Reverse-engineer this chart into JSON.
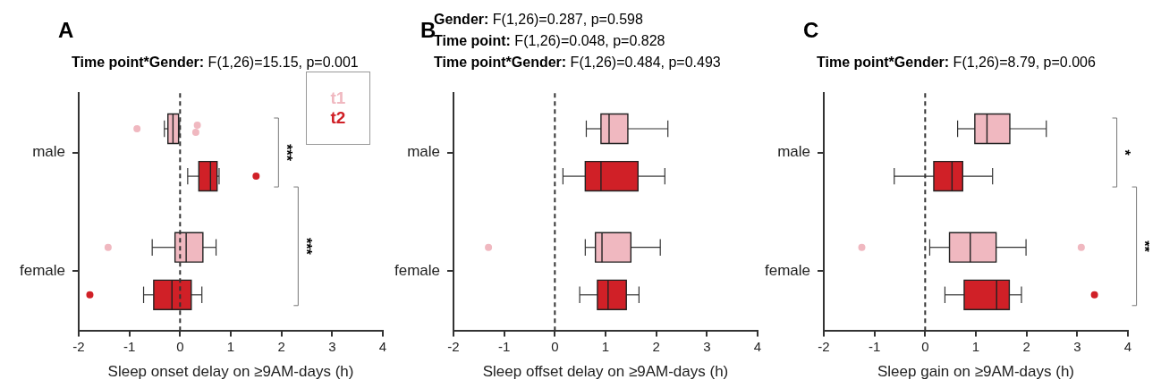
{
  "chart_data": [
    {
      "type": "box",
      "orientation": "horizontal",
      "title": "A",
      "subtitle": "Time point*Gender: F(1,26)=15.15, p=0.001",
      "xlabel": "Sleep onset delay on ≥9AM-days (h)",
      "categories": [
        "male",
        "female"
      ],
      "xlim": [
        -2,
        4
      ],
      "xticks": [
        -2,
        -1,
        0,
        1,
        2,
        3,
        4
      ],
      "grid": false,
      "legend": "top right",
      "series": [
        {
          "name": "t1",
          "color": "#f0b8c0",
          "boxes": [
            {
              "low": -0.31,
              "q1": -0.24,
              "median": -0.14,
              "q3": -0.03,
              "high": -0.01,
              "outliers": [
                -0.85,
                0.31,
                0.34
              ]
            },
            {
              "low": -0.55,
              "q1": -0.1,
              "median": 0.12,
              "q3": 0.45,
              "high": 0.71,
              "outliers": [
                -1.42
              ]
            }
          ]
        },
        {
          "name": "t2",
          "color": "#d02027",
          "boxes": [
            {
              "low": 0.15,
              "q1": 0.37,
              "median": 0.6,
              "q3": 0.73,
              "high": 0.77,
              "outliers": [
                1.5
              ]
            },
            {
              "low": -0.72,
              "q1": -0.52,
              "median": -0.16,
              "q3": 0.22,
              "high": 0.43,
              "outliers": [
                -1.78
              ]
            }
          ]
        }
      ],
      "ref_lines": [
        {
          "axis": "x",
          "value": 0,
          "color": "#333333",
          "line_style": "dashed"
        }
      ],
      "annotations": [
        "***",
        "***"
      ]
    },
    {
      "type": "box",
      "orientation": "horizontal",
      "title": "B",
      "subtitle": "Gender: F(1,26)=0.287, p=0.598\nTime point: F(1,26)=0.048, p=0.828\nTime point*Gender: F(1,26)=0.484, p=0.493",
      "xlabel": "Sleep offset delay on ≥9AM-days (h)",
      "categories": [
        "male",
        "female"
      ],
      "xlim": [
        -2,
        4
      ],
      "xticks": [
        -2,
        -1,
        0,
        1,
        2,
        3,
        4
      ],
      "grid": false,
      "series": [
        {
          "color": "#f0b8c0",
          "boxes": [
            {
              "low": 0.62,
              "q1": 0.91,
              "median": 1.07,
              "q3": 1.44,
              "high": 2.23
            },
            {
              "low": 0.6,
              "q1": 0.8,
              "median": 0.93,
              "q3": 1.5,
              "high": 2.08,
              "outliers": [
                -1.31
              ]
            }
          ]
        },
        {
          "color": "#d02027",
          "boxes": [
            {
              "low": 0.16,
              "q1": 0.6,
              "median": 0.91,
              "q3": 1.64,
              "high": 2.17
            },
            {
              "low": 0.49,
              "q1": 0.84,
              "median": 1.05,
              "q3": 1.41,
              "high": 1.66
            }
          ]
        }
      ],
      "ref_lines": [
        {
          "axis": "x",
          "value": 0,
          "color": "#333333",
          "line_style": "dashed"
        }
      ]
    },
    {
      "type": "box",
      "orientation": "horizontal",
      "title": "C",
      "subtitle": "Time point*Gender: F(1,26)=8.79, p=0.006",
      "xlabel": "Sleep gain on ≥9AM-days (h)",
      "categories": [
        "male",
        "female"
      ],
      "xlim": [
        -2,
        4
      ],
      "xticks": [
        -2,
        -1,
        0,
        1,
        2,
        3,
        4
      ],
      "grid": false,
      "series": [
        {
          "color": "#f0b8c0",
          "boxes": [
            {
              "low": 0.64,
              "q1": 0.98,
              "median": 1.22,
              "q3": 1.67,
              "high": 2.39
            },
            {
              "low": 0.09,
              "q1": 0.48,
              "median": 0.89,
              "q3": 1.4,
              "high": 1.99,
              "outliers": [
                -1.25,
                3.08
              ]
            }
          ]
        },
        {
          "color": "#d02027",
          "boxes": [
            {
              "low": -0.61,
              "q1": 0.17,
              "median": 0.53,
              "q3": 0.74,
              "high": 1.33
            },
            {
              "low": 0.39,
              "q1": 0.77,
              "median": 1.41,
              "q3": 1.66,
              "high": 1.9,
              "outliers": [
                3.34
              ]
            }
          ]
        }
      ],
      "ref_lines": [
        {
          "axis": "x",
          "value": 0,
          "color": "#333333",
          "line_style": "dashed"
        }
      ],
      "annotations": [
        "*",
        "**"
      ]
    }
  ]
}
